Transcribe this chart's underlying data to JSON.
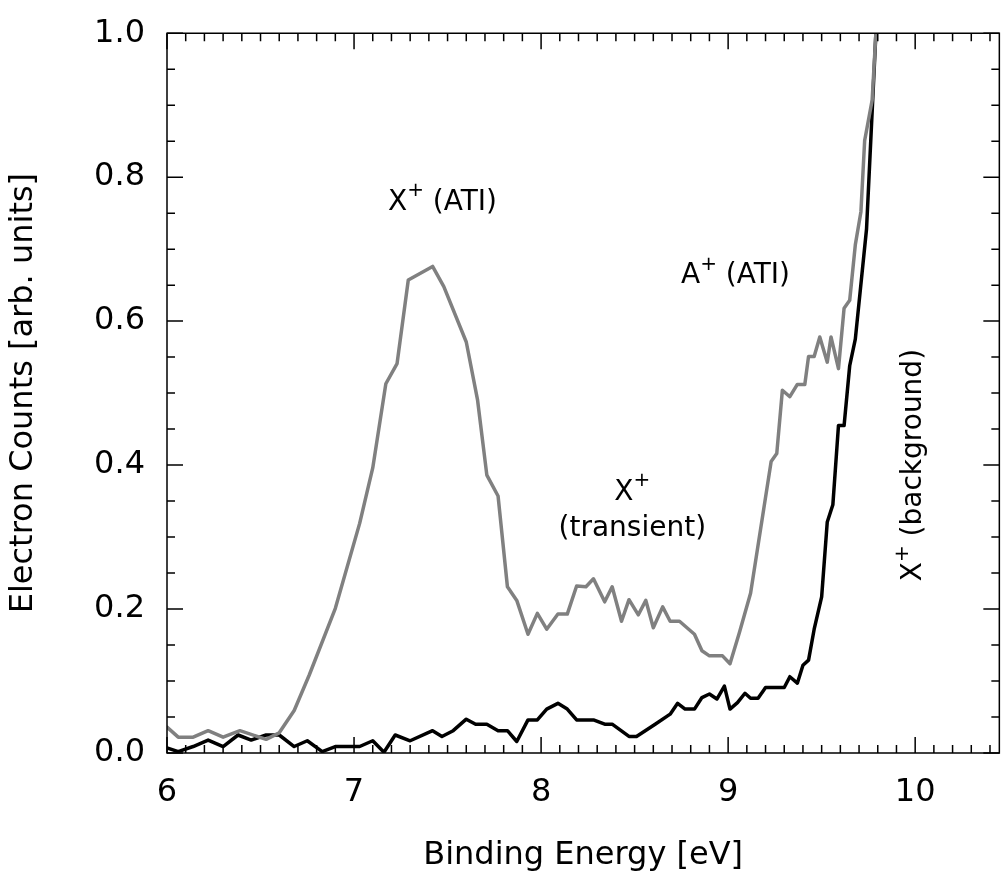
{
  "chart_data": {
    "type": "line",
    "xlabel": "Binding Energy [eV]",
    "ylabel": "Electron Counts [arb. units]",
    "xlim": [
      6,
      10.45
    ],
    "ylim": [
      0,
      1
    ],
    "xticks": [
      6,
      {
        "value": 6.1,
        "label": null
      },
      {
        "value": 6.2,
        "label": null
      },
      {
        "value": 6.3,
        "label": null
      },
      {
        "value": 6.4,
        "label": null
      },
      {
        "value": 6.5,
        "label": null
      },
      {
        "value": 6.6,
        "label": null
      },
      {
        "value": 6.7,
        "label": null
      },
      {
        "value": 6.8,
        "label": null
      },
      {
        "value": 6.9,
        "label": null
      },
      7,
      {
        "value": 7.1,
        "label": null
      },
      {
        "value": 7.2,
        "label": null
      },
      {
        "value": 7.3,
        "label": null
      },
      {
        "value": 7.4,
        "label": null
      },
      {
        "value": 7.5,
        "label": null
      },
      {
        "value": 7.6,
        "label": null
      },
      {
        "value": 7.7,
        "label": null
      },
      {
        "value": 7.8,
        "label": null
      },
      {
        "value": 7.9,
        "label": null
      },
      8,
      {
        "value": 8.1,
        "label": null
      },
      {
        "value": 8.2,
        "label": null
      },
      {
        "value": 8.3,
        "label": null
      },
      {
        "value": 8.4,
        "label": null
      },
      {
        "value": 8.5,
        "label": null
      },
      {
        "value": 8.6,
        "label": null
      },
      {
        "value": 8.7,
        "label": null
      },
      {
        "value": 8.8,
        "label": null
      },
      {
        "value": 8.9,
        "label": null
      },
      9,
      {
        "value": 9.1,
        "label": null
      },
      {
        "value": 9.2,
        "label": null
      },
      {
        "value": 9.3,
        "label": null
      },
      {
        "value": 9.4,
        "label": null
      },
      {
        "value": 9.5,
        "label": null
      },
      {
        "value": 9.6,
        "label": null
      },
      {
        "value": 9.7,
        "label": null
      },
      {
        "value": 9.8,
        "label": null
      },
      {
        "value": 9.9,
        "label": null
      },
      10,
      {
        "value": 10.1,
        "label": null
      },
      {
        "value": 10.2,
        "label": null
      },
      {
        "value": 10.3,
        "label": null
      },
      {
        "value": 10.4,
        "label": null
      }
    ],
    "yticks": [
      {
        "value": 0,
        "label": "0.0"
      },
      {
        "value": 0.05,
        "label": null
      },
      {
        "value": 0.1,
        "label": null
      },
      {
        "value": 0.15,
        "label": null
      },
      {
        "value": 0.2,
        "label": "0.2"
      },
      {
        "value": 0.25,
        "label": null
      },
      {
        "value": 0.3,
        "label": null
      },
      {
        "value": 0.35,
        "label": null
      },
      {
        "value": 0.4,
        "label": "0.4"
      },
      {
        "value": 0.45,
        "label": null
      },
      {
        "value": 0.5,
        "label": null
      },
      {
        "value": 0.55,
        "label": null
      },
      {
        "value": 0.6,
        "label": "0.6"
      },
      {
        "value": 0.65,
        "label": null
      },
      {
        "value": 0.7,
        "label": null
      },
      {
        "value": 0.75,
        "label": null
      },
      {
        "value": 0.8,
        "label": "0.8"
      },
      {
        "value": 0.85,
        "label": null
      },
      {
        "value": 0.9,
        "label": null
      },
      {
        "value": 0.95,
        "label": null
      },
      {
        "value": 1,
        "label": "1.0"
      }
    ],
    "grid": false,
    "legend": false,
    "marker": "none",
    "line_style": "solid",
    "series": [
      {
        "color": "#808080",
        "x": [
          6.0,
          6.06,
          6.14,
          6.22,
          6.3,
          6.39,
          6.53,
          6.6,
          6.68,
          6.76,
          6.9,
          7.03,
          7.1,
          7.17,
          7.23,
          7.29,
          7.42,
          7.48,
          7.6,
          7.66,
          7.71,
          7.77,
          7.82,
          7.87,
          7.93,
          7.98,
          8.03,
          8.09,
          8.14,
          8.19,
          8.24,
          8.28,
          8.34,
          8.38,
          8.43,
          8.47,
          8.52,
          8.56,
          8.6,
          8.65,
          8.69,
          8.74,
          8.82,
          8.86,
          8.9,
          8.97,
          9.01,
          9.06,
          9.12,
          9.23,
          9.26,
          9.29,
          9.33,
          9.37,
          9.41,
          9.43,
          9.46,
          9.49,
          9.53,
          9.55,
          9.59,
          9.62,
          9.65,
          9.68,
          9.71,
          9.73,
          9.77,
          9.79
        ],
        "values": [
          0.036,
          0.022,
          0.022,
          0.031,
          0.022,
          0.031,
          0.019,
          0.028,
          0.059,
          0.108,
          0.201,
          0.319,
          0.396,
          0.513,
          0.541,
          0.657,
          0.676,
          0.648,
          0.571,
          0.491,
          0.386,
          0.357,
          0.231,
          0.212,
          0.165,
          0.194,
          0.172,
          0.193,
          0.193,
          0.232,
          0.231,
          0.242,
          0.21,
          0.231,
          0.183,
          0.213,
          0.192,
          0.212,
          0.174,
          0.203,
          0.183,
          0.183,
          0.165,
          0.142,
          0.135,
          0.135,
          0.124,
          0.167,
          0.222,
          0.405,
          0.416,
          0.504,
          0.495,
          0.512,
          0.512,
          0.551,
          0.551,
          0.578,
          0.543,
          0.578,
          0.534,
          0.618,
          0.629,
          0.706,
          0.752,
          0.851,
          0.907,
          1.0
        ]
      },
      {
        "color": "#000000",
        "x": [
          6.0,
          6.06,
          6.14,
          6.22,
          6.3,
          6.38,
          6.45,
          6.53,
          6.6,
          6.68,
          6.75,
          6.83,
          6.9,
          7.03,
          7.1,
          7.16,
          7.22,
          7.3,
          7.42,
          7.47,
          7.53,
          7.6,
          7.65,
          7.71,
          7.77,
          7.82,
          7.87,
          7.93,
          7.98,
          8.03,
          8.09,
          8.14,
          8.19,
          8.28,
          8.34,
          8.38,
          8.47,
          8.51,
          8.61,
          8.69,
          8.73,
          8.77,
          8.82,
          8.86,
          8.9,
          8.94,
          8.98,
          9.01,
          9.05,
          9.09,
          9.12,
          9.16,
          9.2,
          9.3,
          9.33,
          9.37,
          9.4,
          9.43,
          9.46,
          9.5,
          9.53,
          9.56,
          9.59,
          9.62,
          9.65,
          9.68,
          9.74,
          9.77,
          9.79
        ],
        "values": [
          0.007,
          0.002,
          0.009,
          0.018,
          0.009,
          0.025,
          0.018,
          0.025,
          0.025,
          0.009,
          0.017,
          0.002,
          0.009,
          0.009,
          0.017,
          0.001,
          0.025,
          0.017,
          0.031,
          0.023,
          0.031,
          0.047,
          0.04,
          0.04,
          0.031,
          0.031,
          0.016,
          0.046,
          0.046,
          0.061,
          0.069,
          0.061,
          0.046,
          0.046,
          0.04,
          0.04,
          0.023,
          0.023,
          0.04,
          0.054,
          0.069,
          0.061,
          0.061,
          0.077,
          0.082,
          0.075,
          0.093,
          0.061,
          0.07,
          0.083,
          0.076,
          0.076,
          0.091,
          0.091,
          0.106,
          0.097,
          0.122,
          0.129,
          0.172,
          0.217,
          0.321,
          0.345,
          0.455,
          0.455,
          0.538,
          0.575,
          0.728,
          0.891,
          1.0
        ]
      }
    ],
    "annotations": [
      "X$^{+}$ (ATI)",
      "X$^{+}$\n(transient)",
      "A$^{+}$ (ATI)",
      "X$^{+}$ (background)"
    ]
  }
}
